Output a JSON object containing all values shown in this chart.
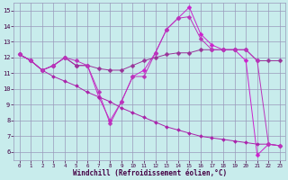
{
  "background_color": "#c8ecec",
  "grid_color": "#9999bb",
  "xlabel": "Windchill (Refroidissement éolien,°C)",
  "xlim": [
    -0.5,
    23.5
  ],
  "ylim": [
    5.5,
    15.5
  ],
  "xticks": [
    0,
    1,
    2,
    3,
    4,
    5,
    6,
    7,
    8,
    9,
    10,
    11,
    12,
    13,
    14,
    15,
    16,
    17,
    18,
    19,
    20,
    21,
    22,
    23
  ],
  "yticks": [
    6,
    7,
    8,
    9,
    10,
    11,
    12,
    13,
    14,
    15
  ],
  "lines": [
    {
      "x": [
        0,
        1,
        2,
        3,
        4,
        5,
        6,
        7,
        8,
        9,
        10,
        11,
        12,
        13,
        14,
        15,
        16,
        17,
        18,
        19,
        20,
        21,
        22,
        23
      ],
      "y": [
        12.2,
        11.8,
        11.2,
        11.5,
        12.0,
        11.5,
        11.5,
        9.5,
        8.0,
        9.2,
        10.8,
        11.2,
        12.3,
        13.8,
        14.5,
        15.2,
        13.5,
        12.8,
        12.5,
        12.5,
        11.8,
        5.8,
        6.5,
        6.4
      ],
      "color": "#cc22cc",
      "marker": "D",
      "ms": 2.5
    },
    {
      "x": [
        0,
        1,
        2,
        3,
        4,
        5,
        6,
        7,
        8,
        9,
        10,
        11,
        12,
        13,
        14,
        15,
        16,
        17,
        18,
        19,
        20,
        21,
        22,
        23
      ],
      "y": [
        12.2,
        11.8,
        11.2,
        11.5,
        12.0,
        11.5,
        11.5,
        11.3,
        11.2,
        11.2,
        11.5,
        11.8,
        12.0,
        12.2,
        12.3,
        12.3,
        12.5,
        12.5,
        12.5,
        12.5,
        12.5,
        11.8,
        11.8,
        11.8
      ],
      "color": "#993399",
      "marker": "D",
      "ms": 2.5
    },
    {
      "x": [
        0,
        1,
        2,
        3,
        4,
        5,
        6,
        7,
        8,
        9,
        10,
        11,
        12,
        13,
        14,
        15,
        16,
        17,
        18,
        19,
        20,
        21,
        22,
        23
      ],
      "y": [
        12.2,
        11.8,
        11.2,
        10.8,
        10.5,
        10.2,
        9.8,
        9.5,
        9.2,
        8.8,
        8.5,
        8.2,
        7.9,
        7.6,
        7.4,
        7.2,
        7.0,
        6.9,
        6.8,
        6.7,
        6.6,
        6.5,
        6.5,
        6.4
      ],
      "color": "#aa22aa",
      "marker": "D",
      "ms": 2.0
    },
    {
      "x": [
        0,
        1,
        2,
        3,
        4,
        5,
        6,
        7,
        8,
        9,
        10,
        11,
        12,
        13,
        14,
        15,
        16,
        17,
        18,
        19,
        20,
        21,
        22,
        23
      ],
      "y": [
        12.2,
        11.8,
        11.2,
        11.5,
        12.0,
        11.8,
        11.5,
        9.8,
        7.8,
        9.2,
        10.8,
        10.8,
        12.3,
        13.8,
        14.5,
        14.6,
        13.2,
        12.5,
        12.5,
        12.5,
        12.5,
        11.8,
        6.5,
        6.4
      ],
      "color": "#bb33bb",
      "marker": "D",
      "ms": 2.5
    }
  ]
}
